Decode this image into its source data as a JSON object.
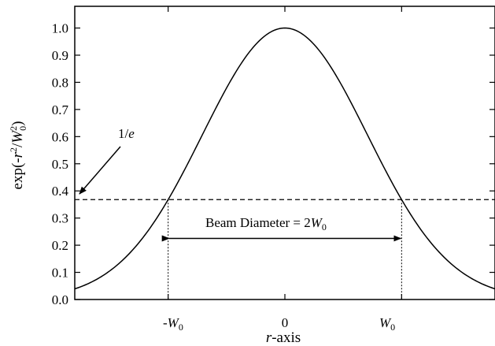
{
  "chart_data": {
    "type": "line",
    "function": "gaussian exp(-r^2/W0^2)",
    "xlim": [
      -1.8,
      1.8
    ],
    "ylim": [
      0,
      1.0
    ],
    "ylim_display_max": 1.08,
    "y_ticks": [
      0.0,
      0.1,
      0.2,
      0.3,
      0.4,
      0.5,
      0.6,
      0.7,
      0.8,
      0.9,
      1.0
    ],
    "y_tick_labels": [
      "0.0",
      "0.1",
      "0.2",
      "0.3",
      "0.4",
      "0.5",
      "0.6",
      "0.7",
      "0.8",
      "0.9",
      "1.0"
    ],
    "x_ticks": [
      -1,
      0,
      1
    ],
    "x_tick_labels": [
      "-W0",
      "0",
      "W0"
    ],
    "ylabel": "exp(-r2/W02)",
    "xlabel": "r-axis",
    "series": [
      {
        "x": [
          -1.8,
          -1.6,
          -1.4,
          -1.2,
          -1.0,
          -0.8,
          -0.6,
          -0.4,
          -0.2,
          0.0,
          0.2,
          0.4,
          0.6,
          0.8,
          1.0,
          1.2,
          1.4,
          1.6,
          1.8
        ],
        "values": [
          0.039,
          0.077,
          0.141,
          0.237,
          0.368,
          0.527,
          0.698,
          0.852,
          0.961,
          1.0,
          0.961,
          0.852,
          0.698,
          0.527,
          0.368,
          0.237,
          0.141,
          0.077,
          0.039
        ]
      }
    ],
    "threshold": {
      "y": 0.368,
      "label": "1/e"
    },
    "beam_diameter": {
      "from": -1,
      "to": 1,
      "label": "Beam Diameter = 2W0"
    },
    "grid": false,
    "legend": "none"
  },
  "text": {
    "one_over_e": {
      "main": "1/",
      "italic": "e"
    },
    "beam": {
      "prefix": "Beam Diameter = 2",
      "w": "W",
      "sub": "0"
    },
    "xtick_neg": {
      "sign": "-",
      "w": "W",
      "sub": "0"
    },
    "xtick_zero": "0",
    "xtick_pos": {
      "w": "W",
      "sub": "0"
    },
    "xlabel": {
      "r": "r",
      "rest": "-axis"
    },
    "ylabel": {
      "a": "exp(-",
      "r": "r",
      "sup1": "2",
      "slash": "/",
      "w": "W",
      "sub": "0",
      "sup2": "2",
      "close": ")"
    }
  }
}
